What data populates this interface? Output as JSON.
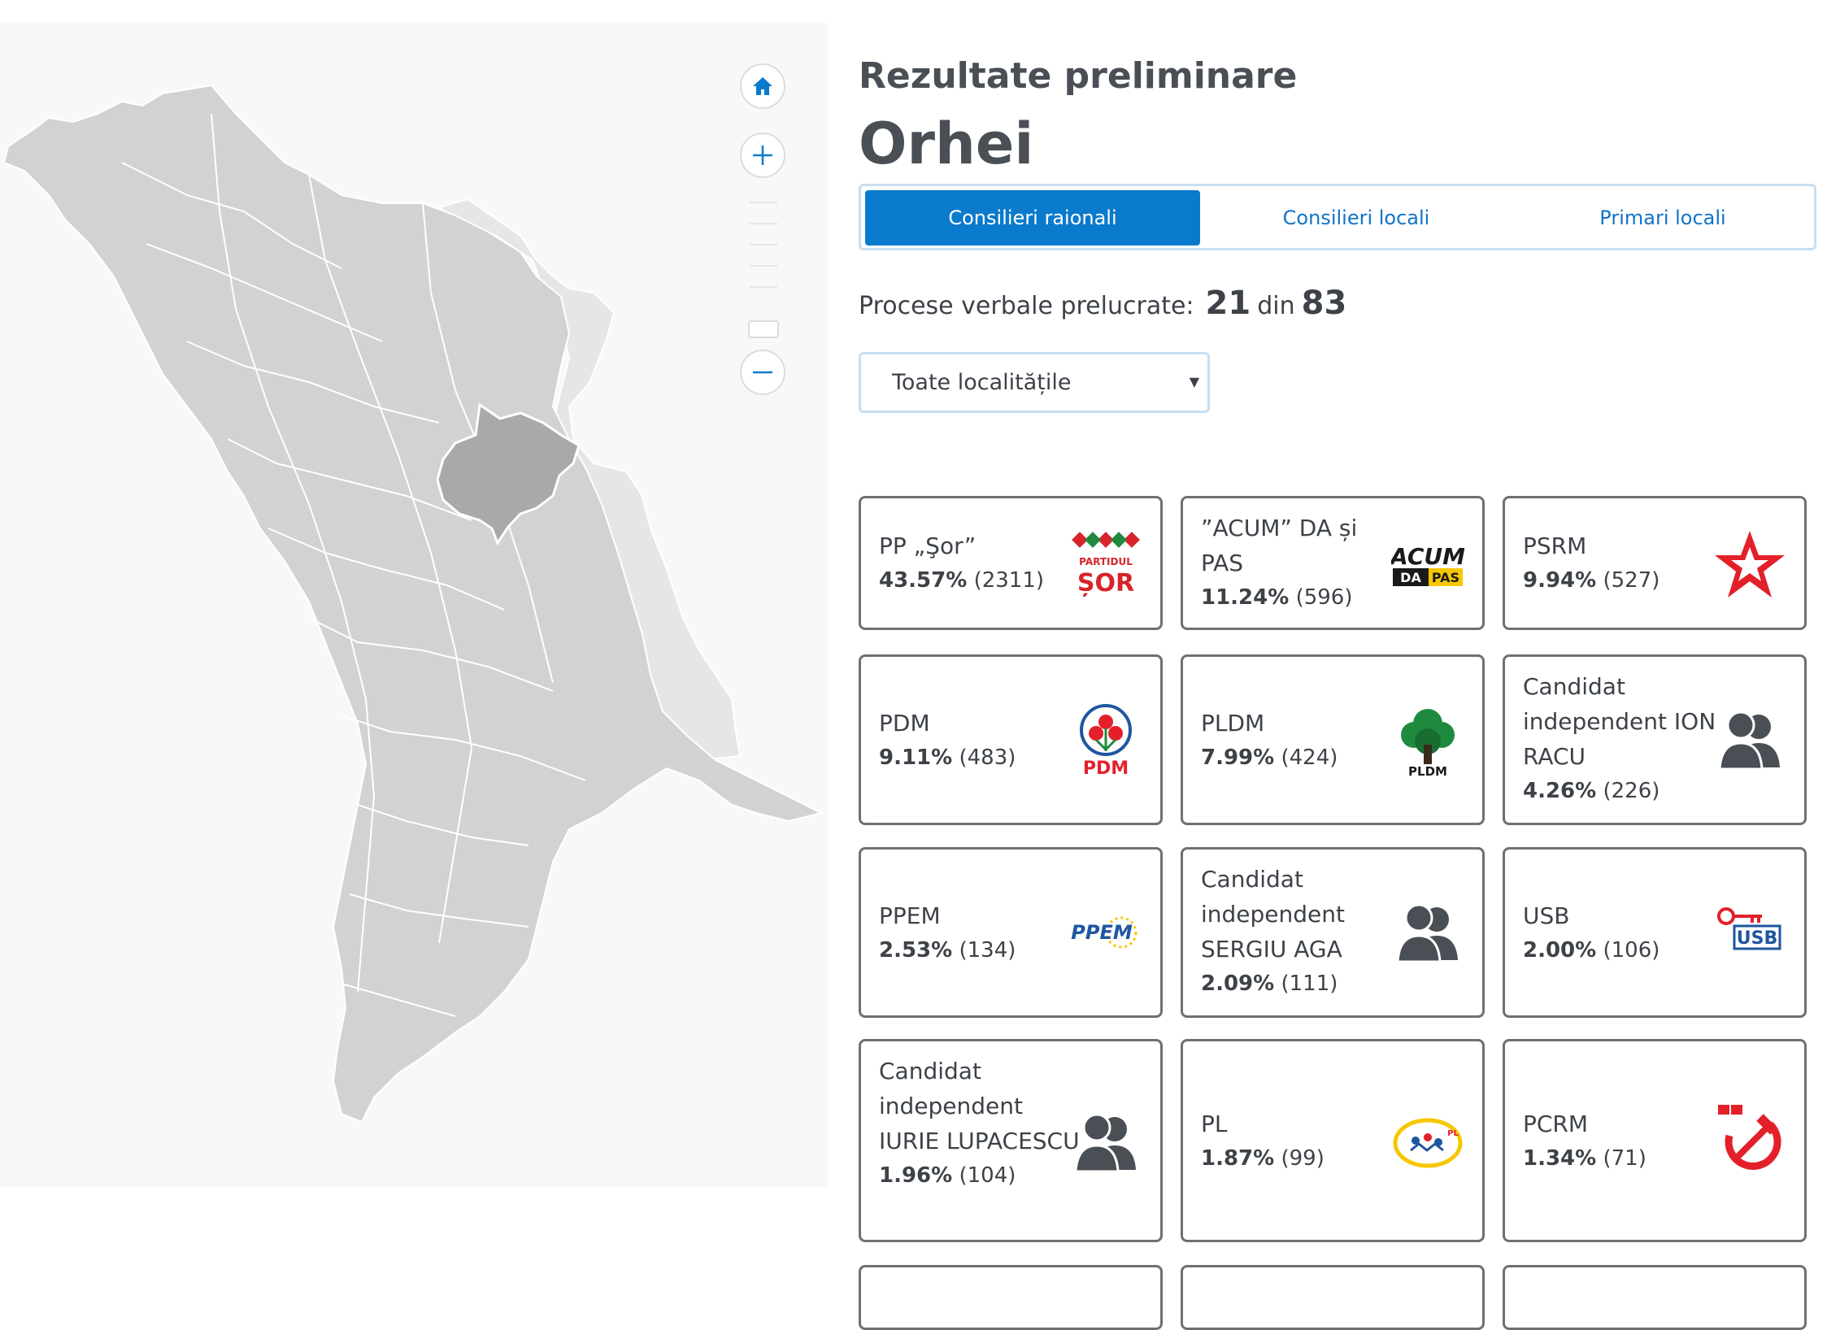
{
  "header": {
    "subtitle": "Rezultate preliminare",
    "district": "Orhei"
  },
  "tabs": [
    {
      "label": "Consilieri raionali",
      "active": true
    },
    {
      "label": "Consilieri locali",
      "active": false
    },
    {
      "label": "Primari locali",
      "active": false
    }
  ],
  "processed": {
    "label": "Procese verbale prelucrate:",
    "done": "21",
    "sep": "din",
    "total": "83"
  },
  "locality_select": {
    "value": "Toate localitățile"
  },
  "map_controls": {
    "home": "home-icon",
    "zoom_in": "plus-icon",
    "zoom_out": "minus-icon"
  },
  "colors": {
    "accent": "#0a7acc",
    "region_default": "#d0d0d0",
    "region_selected": "#a9a9a9",
    "region_other": "#e5e5e5",
    "card_border": "#707070"
  },
  "results": [
    {
      "name": "PP „Şor”",
      "pct": "43.57%",
      "votes": "(2311)",
      "logo": "sor-logo",
      "logo_text": "PARTIDUL",
      "logo_text2": "ȘOR"
    },
    {
      "name": "”ACUM” DA și PAS",
      "pct": "11.24%",
      "votes": "(596)",
      "logo": "acum-logo",
      "logo_text": "ACUM",
      "logo_text2": "DA",
      "logo_text3": "PAS"
    },
    {
      "name": "PSRM",
      "pct": "9.94%",
      "votes": "(527)",
      "logo": "star-logo"
    },
    {
      "name": "PDM",
      "pct": "9.11%",
      "votes": "(483)",
      "logo": "pdm-logo",
      "logo_text": "PDM"
    },
    {
      "name": "PLDM",
      "pct": "7.99%",
      "votes": "(424)",
      "logo": "tree-logo",
      "logo_text": "PLDM"
    },
    {
      "name": "Candidat independent ION RACU",
      "pct": "4.26%",
      "votes": "(226)",
      "logo": "people-icon"
    },
    {
      "name": "PPEM",
      "pct": "2.53%",
      "votes": "(134)",
      "logo": "ppem-logo",
      "logo_text": "PPEM"
    },
    {
      "name": "Candidat independent SERGIU AGA",
      "pct": "2.09%",
      "votes": "(111)",
      "logo": "people-icon"
    },
    {
      "name": "USB",
      "pct": "2.00%",
      "votes": "(106)",
      "logo": "usb-logo",
      "logo_text": "USB"
    },
    {
      "name": "Candidat independent IURIE LUPACESCU",
      "pct": "1.96%",
      "votes": "(104)",
      "logo": "people-icon"
    },
    {
      "name": "PL",
      "pct": "1.87%",
      "votes": "(99)",
      "logo": "pl-logo",
      "logo_text": "PL"
    },
    {
      "name": "PCRM",
      "pct": "1.34%",
      "votes": "(71)",
      "logo": "hammer-sickle-logo"
    }
  ]
}
